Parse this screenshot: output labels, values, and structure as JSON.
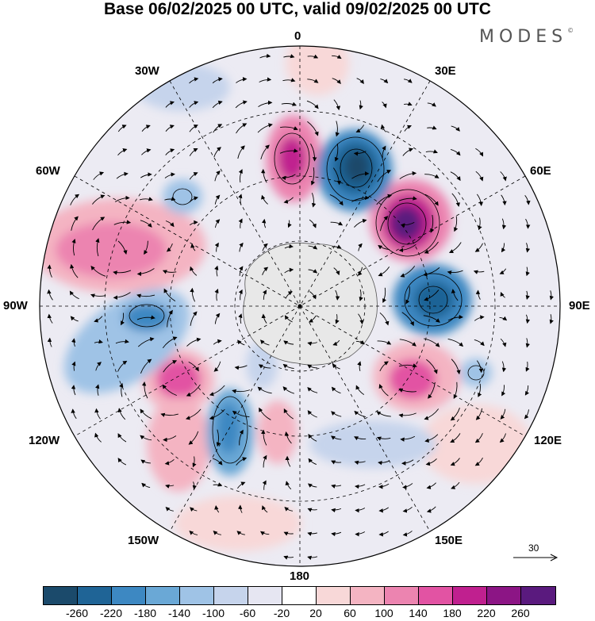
{
  "title": "Base 06/02/2025 00 UTC, valid 09/02/2025 00 UTC",
  "logo": "MODES",
  "logo_mark": "©",
  "longitude_labels": {
    "top": "0",
    "top_right": "30E",
    "right_upper": "60E",
    "right": "90E",
    "right_lower": "120E",
    "bottom_right": "150E",
    "bottom": "180",
    "bottom_left": "150W",
    "left_lower": "120W",
    "left": "90W",
    "left_upper": "60W",
    "top_left": "30W"
  },
  "reference_vector": "30",
  "colorbar": {
    "colors": [
      "#1b4a6b",
      "#1f6496",
      "#3d88c2",
      "#6aa8d6",
      "#9fc3e6",
      "#c6d4ec",
      "#e6e6f2",
      "#ffffff",
      "#f8d8d8",
      "#f4b4c2",
      "#ec84b0",
      "#e253a3",
      "#c0208f",
      "#8c1585",
      "#5a1a7e"
    ],
    "ticks": [
      "-260",
      "-220",
      "-180",
      "-140",
      "-100",
      "-60",
      "-20",
      "20",
      "60",
      "100",
      "140",
      "180",
      "220",
      "260"
    ]
  }
}
